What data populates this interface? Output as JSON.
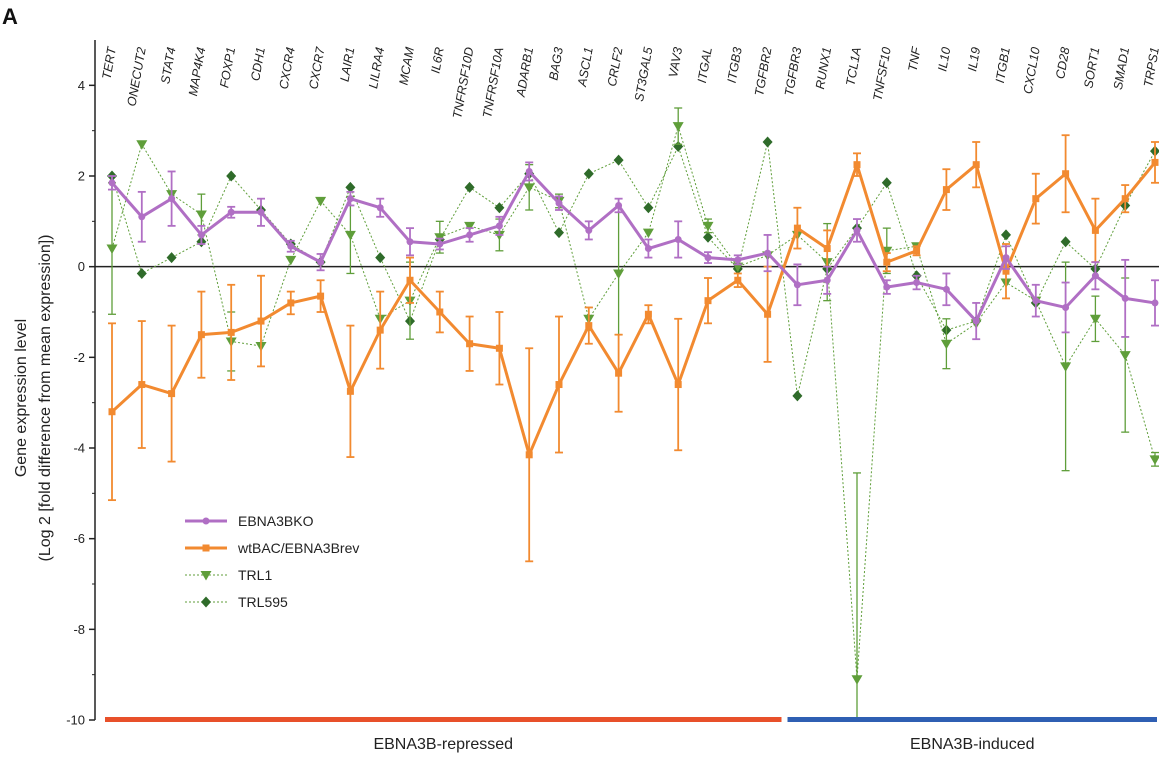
{
  "panel_label": "A",
  "colors": {
    "ebna3bko": "#b06fc4",
    "wtbac": "#f28a30",
    "trl1": "#5f9e3a",
    "trl595": "#2f6b2a",
    "repressed_bar": "#e8502a",
    "induced_bar": "#2f5fb3"
  },
  "chart_data": {
    "type": "line",
    "ylabel": "Gene expression level",
    "ylabel_line2": "(Log 2 [fold difference from mean expression])",
    "ylim": [
      -10,
      5
    ],
    "yticks": [
      "4",
      "2",
      "0",
      "-2",
      "-4",
      "-6",
      "-8",
      "-10"
    ],
    "ytick_values": [
      4,
      2,
      0,
      -2,
      -4,
      -6,
      -8,
      -10
    ],
    "grid": false,
    "legend_position": "lower-left",
    "categories": [
      "TERT",
      "ONECUT2",
      "STAT4",
      "MAP4K4",
      "FOXP1",
      "CDH1",
      "CXCR4",
      "CXCR7",
      "LAIR1",
      "LILRA4",
      "MCAM",
      "IL6R",
      "TNFRSF10D",
      "TNFRSF10A",
      "ADARB1",
      "BAG3",
      "ASCL1",
      "CRLF2",
      "ST3GAL5",
      "VAV3",
      "ITGAL",
      "ITGB3",
      "TGFBR2",
      "TGFBR3",
      "RUNX1",
      "TCL1A",
      "TNFSF10",
      "TNF",
      "IL10",
      "IL19",
      "ITGB1",
      "CXCL10",
      "CD28",
      "SORT1",
      "SMAD1",
      "TRPS1"
    ],
    "groups": [
      {
        "label": "EBNA3B-repressed",
        "from": "TERT",
        "to": "TGFBR2"
      },
      {
        "label": "EBNA3B-induced",
        "from": "TGFBR3",
        "to": "TRPS1"
      }
    ],
    "series": [
      {
        "name": "EBNA3BKO",
        "style": "solid-circle",
        "values": [
          1.85,
          1.1,
          1.5,
          0.7,
          1.2,
          1.2,
          0.45,
          0.1,
          1.5,
          1.3,
          0.55,
          0.5,
          0.7,
          0.9,
          2.1,
          1.4,
          0.8,
          1.35,
          0.4,
          0.6,
          0.2,
          0.15,
          0.3,
          -0.4,
          -0.3,
          0.8,
          -0.45,
          -0.35,
          -0.5,
          -1.2,
          0.2,
          -0.75,
          -0.9,
          -0.2,
          -0.7,
          -0.8
        ],
        "errors": [
          0.15,
          0.55,
          0.6,
          0.2,
          0.12,
          0.3,
          0.12,
          0.18,
          0.15,
          0.2,
          0.3,
          0.12,
          0.15,
          0.2,
          0.2,
          0.15,
          0.2,
          0.15,
          0.2,
          0.4,
          0.12,
          0.1,
          0.4,
          0.45,
          0.3,
          0.25,
          0.15,
          0.15,
          0.35,
          0.4,
          0.25,
          0.35,
          0.55,
          0.3,
          0.85,
          0.5
        ]
      },
      {
        "name": "wtBAC/EBNA3Brev",
        "style": "solid-square",
        "values": [
          -3.2,
          -2.6,
          -2.8,
          -1.5,
          -1.45,
          -1.2,
          -0.8,
          -0.65,
          -2.75,
          -1.4,
          -0.3,
          -1.0,
          -1.7,
          -1.8,
          -4.15,
          -2.6,
          -1.3,
          -2.35,
          -1.05,
          -2.6,
          -0.75,
          -0.3,
          -1.05,
          0.85,
          0.4,
          2.25,
          0.1,
          0.35,
          1.7,
          2.25,
          -0.1,
          1.5,
          2.05,
          0.8,
          1.5,
          2.3
        ],
        "errors": [
          1.95,
          1.4,
          1.5,
          0.95,
          1.05,
          1.0,
          0.25,
          0.35,
          1.45,
          0.85,
          0.5,
          0.45,
          0.6,
          0.8,
          2.35,
          1.5,
          0.4,
          0.85,
          0.2,
          1.45,
          0.5,
          0.15,
          1.05,
          0.45,
          0.4,
          0.25,
          0.2,
          0.1,
          0.45,
          0.5,
          0.6,
          0.55,
          0.85,
          0.7,
          0.3,
          0.45
        ]
      },
      {
        "name": "TRL1",
        "style": "dotted-triangle",
        "values": [
          0.4,
          2.7,
          1.6,
          1.15,
          -1.65,
          -1.75,
          0.15,
          1.45,
          0.7,
          -1.15,
          -0.75,
          0.65,
          0.9,
          0.7,
          1.75,
          1.45,
          -1.15,
          -0.15,
          0.75,
          3.1,
          0.9,
          0.0,
          0.25,
          0.7,
          0.1,
          -9.1,
          0.35,
          0.45,
          -1.7,
          -1.25,
          -0.35,
          -0.75,
          -2.2,
          -1.15,
          -1.95,
          -4.25
        ],
        "errors": [
          1.45,
          0,
          0,
          0.45,
          0.65,
          0,
          0,
          0,
          0.85,
          0,
          0.85,
          0.35,
          0,
          0.35,
          0.5,
          0.15,
          0.25,
          1.35,
          0,
          0.4,
          0.15,
          0,
          0,
          0,
          0.85,
          4.55,
          0.5,
          0,
          0.55,
          0,
          0,
          0,
          2.3,
          0.5,
          1.7,
          0.15
        ]
      },
      {
        "name": "TRL595",
        "style": "dotted-diamond",
        "values": [
          2.0,
          -0.15,
          0.2,
          0.55,
          2.0,
          1.25,
          0.5,
          0.1,
          1.75,
          0.2,
          -1.2,
          0.6,
          1.75,
          1.3,
          2.05,
          0.75,
          2.05,
          2.35,
          1.3,
          2.65,
          0.65,
          -0.05,
          2.75,
          -2.85,
          -0.05,
          0.85,
          1.85,
          -0.2,
          -1.4,
          -1.2,
          0.7,
          -0.8,
          0.55,
          -0.05,
          1.35,
          2.55
        ],
        "errors": [
          0,
          0,
          0,
          0,
          0,
          0,
          0,
          0,
          0,
          0,
          0,
          0,
          0,
          0,
          0,
          0,
          0,
          0,
          0,
          0,
          0,
          0,
          0,
          0,
          0,
          0,
          0,
          0,
          0,
          0,
          0,
          0,
          0,
          0,
          0,
          0
        ]
      }
    ]
  }
}
